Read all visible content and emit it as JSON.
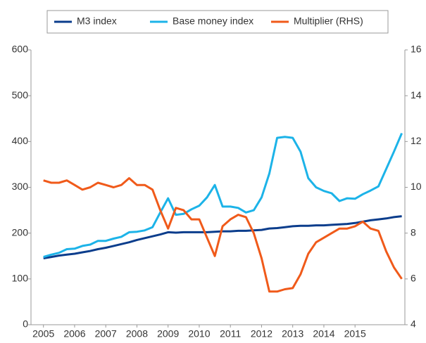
{
  "chart_data": {
    "type": "line",
    "x": [
      2005,
      2005.25,
      2005.5,
      2005.75,
      2006,
      2006.25,
      2006.5,
      2006.75,
      2007,
      2007.25,
      2007.5,
      2007.75,
      2008,
      2008.25,
      2008.5,
      2008.75,
      2009,
      2009.25,
      2009.5,
      2009.75,
      2010,
      2010.25,
      2010.5,
      2010.75,
      2011,
      2011.25,
      2011.5,
      2011.75,
      2012,
      2012.25,
      2012.5,
      2012.75,
      2013,
      2013.25,
      2013.5,
      2013.75,
      2014,
      2014.25,
      2014.5,
      2014.75,
      2015,
      2015.25,
      2015.5,
      2015.75,
      2016,
      2016.25,
      2016.5
    ],
    "series": [
      {
        "name": "M3 index",
        "color": "#0b3d8c",
        "axis": "y",
        "values": [
          145,
          148,
          151,
          153,
          155,
          158,
          161,
          165,
          168,
          172,
          176,
          180,
          185,
          189,
          193,
          197,
          202,
          201,
          202,
          202,
          202,
          202,
          203,
          204,
          204,
          205,
          205,
          206,
          207,
          210,
          211,
          213,
          215,
          216,
          216,
          217,
          217,
          218,
          219,
          220,
          222,
          225,
          228,
          230,
          232,
          235,
          237
        ]
      },
      {
        "name": "Base money index",
        "color": "#1cb3e8",
        "axis": "y",
        "values": [
          148,
          153,
          157,
          165,
          166,
          172,
          175,
          183,
          183,
          188,
          192,
          202,
          203,
          206,
          213,
          245,
          276,
          240,
          242,
          252,
          260,
          278,
          305,
          258,
          258,
          255,
          245,
          250,
          278,
          330,
          408,
          410,
          408,
          378,
          320,
          300,
          292,
          287,
          270,
          276,
          275,
          285,
          293,
          302,
          340,
          378,
          418
        ]
      },
      {
        "name": "Multiplier (RHS)",
        "color": "#f05a1a",
        "axis": "y2",
        "values": [
          10.3,
          10.2,
          10.2,
          10.3,
          10.1,
          9.9,
          10.0,
          10.2,
          10.1,
          10.0,
          10.1,
          10.4,
          10.1,
          10.1,
          9.9,
          9.0,
          8.2,
          9.1,
          9.0,
          8.6,
          8.6,
          7.8,
          7.0,
          8.3,
          8.6,
          8.8,
          8.7,
          8.0,
          6.9,
          5.45,
          5.45,
          5.55,
          5.6,
          6.2,
          7.1,
          7.6,
          7.8,
          8.0,
          8.2,
          8.2,
          8.3,
          8.5,
          8.2,
          8.1,
          7.2,
          6.5,
          6.0
        ]
      }
    ],
    "xlim": [
      2004.6,
      2016.6
    ],
    "xticks": [
      2005,
      2006,
      2007,
      2008,
      2009,
      2010,
      2011,
      2012,
      2013,
      2014,
      2015
    ],
    "ylim": [
      0,
      600
    ],
    "yticks": [
      0,
      100,
      200,
      300,
      400,
      500,
      600
    ],
    "y2lim": [
      4,
      16
    ],
    "y2ticks": [
      4,
      6,
      8,
      10,
      12,
      14,
      16
    ],
    "legend": "top"
  }
}
